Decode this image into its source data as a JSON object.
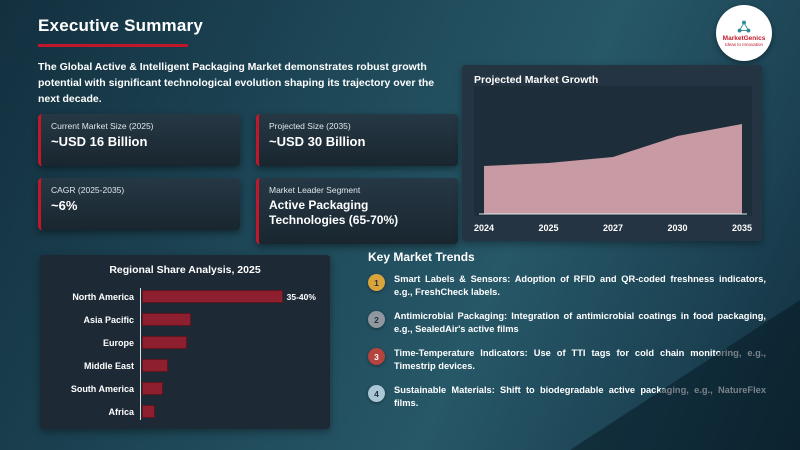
{
  "slide": {
    "title": "Executive Summary"
  },
  "logo": {
    "brand": "MarketGenics",
    "tagline": "Ideas to Innovation"
  },
  "intro": {
    "text": "The Global Active & Intelligent Packaging Market demonstrates robust growth potential with significant technological evolution shaping its trajectory over the next decade."
  },
  "stat_cards": [
    {
      "label": "Current Market Size (2025)",
      "value": "~USD 16 Billion"
    },
    {
      "label": "Projected Size (2035)",
      "value": "~USD 30 Billion"
    },
    {
      "label": "CAGR (2025-2035)",
      "value": "~6%"
    },
    {
      "label": "Market Leader Segment",
      "value": "Active Packaging Technologies (65-70%)"
    }
  ],
  "trends": {
    "title": "Key Market Trends",
    "items": [
      {
        "number": "1",
        "color": "#d9a43c",
        "text_color": "#22323e",
        "text": "Smart Labels & Sensors: Adoption of RFID and QR-coded freshness indicators, e.g., FreshCheck labels."
      },
      {
        "number": "2",
        "color": "#8f989e",
        "text_color": "#22323e",
        "text": "Antimicrobial Packaging: Integration of antimicrobial coatings in food packaging, e.g., SealedAir's active films"
      },
      {
        "number": "3",
        "color": "#b5433e",
        "text_color": "#ffffff",
        "text": "Time-Temperature Indicators: Use of TTI tags for cold chain monitoring, e.g., Timestrip devices."
      },
      {
        "number": "4",
        "color": "#a9c7d6",
        "text_color": "#22323e",
        "text": "Sustainable Materials: Shift to biodegradable active packaging, e.g., NatureFlex films."
      }
    ]
  },
  "chart_data": [
    {
      "type": "area",
      "title": "Projected Market Growth",
      "x_labels": [
        "2024",
        "2025",
        "2027",
        "2030",
        "2035"
      ],
      "values": [
        16,
        17,
        19,
        26,
        30
      ],
      "ylim": [
        0,
        40
      ],
      "fill_color": "#c89ba4",
      "axis_color": "#e3eaef",
      "grid": false,
      "legend": "none"
    },
    {
      "type": "bar",
      "orientation": "horizontal",
      "title": "Regional Share Analysis, 2025",
      "categories": [
        "North America",
        "Asia Pacific",
        "Europe",
        "Middle East",
        "South America",
        "Africa"
      ],
      "values": [
        37.5,
        13,
        12,
        7,
        5.5,
        3.5
      ],
      "value_labels": [
        "35-40%",
        "",
        "",
        "",
        "",
        ""
      ],
      "xlim": [
        0,
        48
      ],
      "bar_color": "#8e1f2e",
      "grid": false,
      "legend": "none"
    }
  ]
}
